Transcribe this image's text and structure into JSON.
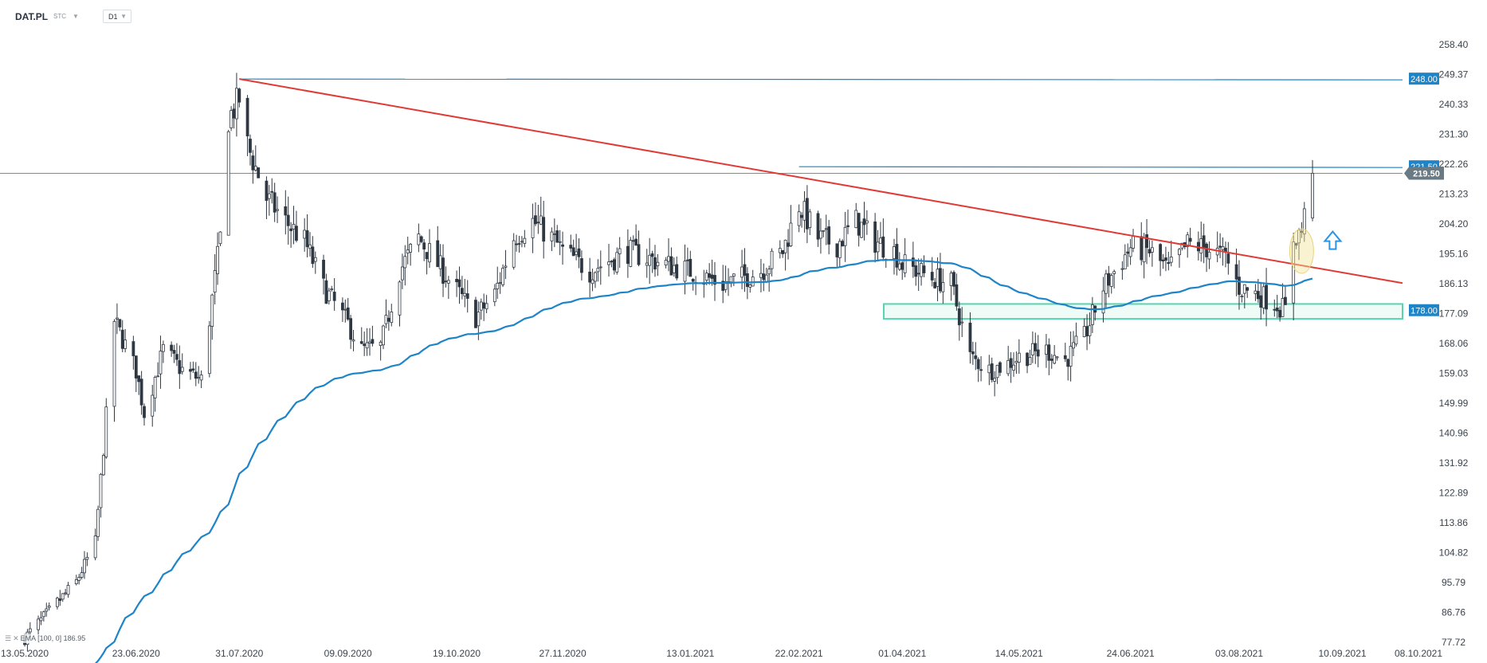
{
  "header": {
    "symbol": "DAT.PL",
    "source": "STC",
    "timeframe": "D1"
  },
  "legend": {
    "icons": [
      "list-icon",
      "close-icon"
    ],
    "text": "EMA [100, 0]",
    "value": "186.95"
  },
  "colors": {
    "up_candle": "#ffffff",
    "down_candle": "#2f3842",
    "ema": "#1e84c8",
    "trendline": "#e03a36",
    "level_line": "#1e84c8",
    "zone_border": "#59d3b0",
    "price_tag": "#6a7a85",
    "highlight": "#f4e49a",
    "arrow": "#2b95e3"
  },
  "chart_data": {
    "type": "candlestick",
    "y_axis": {
      "ticks": [
        "258.40",
        "249.37",
        "240.33",
        "231.30",
        "222.26",
        "213.23",
        "204.20",
        "195.16",
        "186.13",
        "177.09",
        "168.06",
        "159.03",
        "149.99",
        "140.96",
        "131.92",
        "122.89",
        "113.86",
        "104.82",
        "95.79",
        "86.76",
        "77.72"
      ],
      "ylim": [
        77.72,
        258.4
      ]
    },
    "x_axis": {
      "labels": [
        "13.05.2020",
        "23.06.2020",
        "31.07.2020",
        "09.09.2020",
        "19.10.2020",
        "27.11.2020",
        "13.01.2021",
        "22.02.2021",
        "01.04.2021",
        "14.05.2021",
        "24.06.2021",
        "03.08.2021",
        "10.09.2021",
        "08.10.2021"
      ]
    },
    "levels": [
      {
        "value": 248.0,
        "label": "248.00"
      },
      {
        "value": 221.5,
        "label": "221.50"
      }
    ],
    "current_price": {
      "value": 219.5,
      "label": "219.50"
    },
    "support_zone": {
      "low": 175.5,
      "high": 180.0,
      "label": "178.00"
    },
    "ema": {
      "period": 100,
      "last": 186.95
    },
    "trendline": {
      "from": [
        "31.07.2020",
        248.0
      ],
      "to": [
        "08.10.2021",
        186.3
      ]
    },
    "price_path": [
      [
        "13.05.2020",
        79
      ],
      [
        "01.06.2020",
        96
      ],
      [
        "08.06.2020",
        108
      ],
      [
        "12.06.2020",
        146
      ],
      [
        "15.06.2020",
        175
      ],
      [
        "23.06.2020",
        160
      ],
      [
        "26.06.2020",
        147
      ],
      [
        "03.07.2020",
        166
      ],
      [
        "10.07.2020",
        160
      ],
      [
        "17.07.2020",
        157
      ],
      [
        "24.07.2020",
        200
      ],
      [
        "27.07.2020",
        236
      ],
      [
        "31.07.2020",
        242
      ],
      [
        "03.08.2020",
        228
      ],
      [
        "10.08.2020",
        212
      ],
      [
        "17.08.2020",
        205
      ],
      [
        "24.08.2020",
        199
      ],
      [
        "31.08.2020",
        185
      ],
      [
        "09.09.2020",
        174
      ],
      [
        "14.09.2020",
        166
      ],
      [
        "21.09.2020",
        167
      ],
      [
        "28.09.2020",
        190
      ],
      [
        "05.10.2020",
        200
      ],
      [
        "12.10.2020",
        192
      ],
      [
        "19.10.2020",
        184
      ],
      [
        "26.10.2020",
        176
      ],
      [
        "02.11.2020",
        183
      ],
      [
        "09.11.2020",
        200
      ],
      [
        "16.11.2020",
        205
      ],
      [
        "23.11.2020",
        200
      ],
      [
        "27.11.2020",
        196
      ],
      [
        "07.12.2020",
        190
      ],
      [
        "21.12.2020",
        196
      ],
      [
        "04.01.2021",
        192
      ],
      [
        "13.01.2021",
        190
      ],
      [
        "25.01.2021",
        186
      ],
      [
        "08.02.2021",
        190
      ],
      [
        "16.02.2021",
        196
      ],
      [
        "22.02.2021",
        210
      ],
      [
        "01.03.2021",
        200
      ],
      [
        "08.03.2021",
        198
      ],
      [
        "15.03.2021",
        205
      ],
      [
        "22.03.2021",
        199
      ],
      [
        "29.03.2021",
        196
      ],
      [
        "01.04.2021",
        192
      ],
      [
        "12.04.2021",
        188
      ],
      [
        "19.04.2021",
        186
      ],
      [
        "26.04.2021",
        164
      ],
      [
        "03.05.2021",
        160
      ],
      [
        "10.05.2021",
        162
      ],
      [
        "14.05.2021",
        164
      ],
      [
        "24.05.2021",
        166
      ],
      [
        "31.05.2021",
        163
      ],
      [
        "07.06.2021",
        170
      ],
      [
        "14.06.2021",
        185
      ],
      [
        "24.06.2021",
        197
      ],
      [
        "01.07.2021",
        196
      ],
      [
        "08.07.2021",
        190
      ],
      [
        "15.07.2021",
        198
      ],
      [
        "22.07.2021",
        197
      ],
      [
        "29.07.2021",
        194
      ],
      [
        "03.08.2021",
        185
      ],
      [
        "10.08.2021",
        183
      ],
      [
        "17.08.2021",
        180
      ],
      [
        "20.08.2021",
        178
      ],
      [
        "23.08.2021",
        200
      ],
      [
        "26.08.2021",
        202
      ],
      [
        "30.08.2021",
        219.5
      ]
    ]
  }
}
